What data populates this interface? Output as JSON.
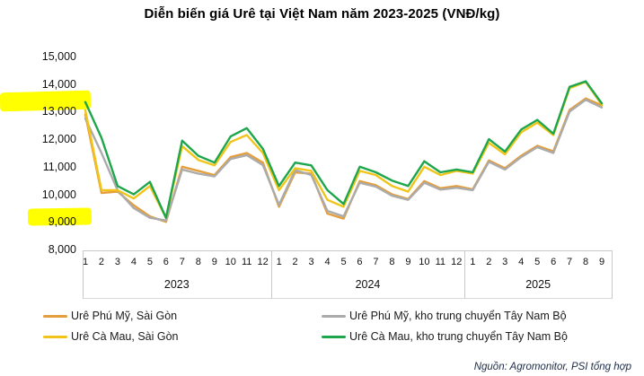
{
  "title": "Diễn biến giá Urê tại Việt Nam năm 2023-2025 (VNĐ/kg)",
  "source": "Nguồn: Agromonitor, PSI tổng hợp",
  "colors": {
    "orange": "#E49E3C",
    "yellow": "#F0C419",
    "gray": "#ABABAB",
    "green": "#1EA64C",
    "highlight": "#FFFF00",
    "axis_line": "#C9C9C9"
  },
  "chart_data": {
    "type": "line",
    "title": "Diễn biến giá Urê tại Việt Nam năm 2023-2025 (VNĐ/kg)",
    "xlabel": "",
    "ylabel": "VNĐ/kg",
    "ylim": [
      8000,
      15000
    ],
    "grid": false,
    "legend_position": "bottom",
    "y_tick_values": [
      15000,
      14000,
      13000,
      12000,
      11000,
      10000,
      9000,
      8000
    ],
    "y_tick_labels": [
      "15,000",
      "14,000",
      "13,000",
      "12,000",
      "11,000",
      "10,000",
      "9,000",
      "8,000"
    ],
    "x_groups": [
      {
        "year": "2023",
        "months": [
          "1",
          "2",
          "3",
          "4",
          "5",
          "6",
          "7",
          "8",
          "9",
          "10",
          "11",
          "12"
        ]
      },
      {
        "year": "2024",
        "months": [
          "1",
          "2",
          "3",
          "4",
          "5",
          "6",
          "7",
          "8",
          "9",
          "10",
          "11",
          "12"
        ]
      },
      {
        "year": "2025",
        "months": [
          "1",
          "2",
          "3",
          "4",
          "5",
          "6",
          "7",
          "8",
          "9"
        ]
      }
    ],
    "annotations": [
      {
        "type": "marker-highlight",
        "target": "y-axis label 13,000",
        "color": "#FFFF00"
      },
      {
        "type": "marker-highlight",
        "target": "y-axis label 9,000",
        "color": "#FFFF00"
      }
    ],
    "series": [
      {
        "name": "Urê Phú Mỹ, Sài Gòn",
        "color": "#E49E3C",
        "values": [
          12900,
          10050,
          10100,
          9600,
          9200,
          9000,
          11000,
          10850,
          10700,
          11350,
          11500,
          11150,
          9550,
          10800,
          10750,
          9300,
          9120,
          10480,
          10330,
          10000,
          9830,
          10480,
          10220,
          10300,
          10180,
          11230,
          10950,
          11400,
          11760,
          11560,
          13060,
          13480,
          13230
        ]
      },
      {
        "name": "Urê Cà Mau, Sài Gòn",
        "color": "#F0C419",
        "values": [
          13050,
          10150,
          10150,
          9850,
          10300,
          9150,
          11750,
          11250,
          11050,
          11900,
          12150,
          11500,
          10150,
          10950,
          10850,
          9800,
          9550,
          10850,
          10700,
          10300,
          10100,
          11000,
          10700,
          10850,
          10750,
          11870,
          11450,
          12250,
          12600,
          12150,
          13850,
          14080,
          13250
        ]
      },
      {
        "name": "Urê Phú Mỹ, kho trung chuyển Tây Nam Bộ",
        "color": "#ABABAB",
        "values": [
          12750,
          11500,
          10150,
          9500,
          9150,
          9050,
          10900,
          10750,
          10650,
          11280,
          11420,
          11060,
          9620,
          10880,
          10700,
          9400,
          9200,
          10420,
          10280,
          9950,
          9800,
          10420,
          10170,
          10240,
          10150,
          11180,
          10900,
          11350,
          11710,
          11500,
          13000,
          13430,
          13150
        ]
      },
      {
        "name": "Urê Cà Mau, kho trung chuyển Tây Nam Bộ",
        "color": "#1EA64C",
        "values": [
          13350,
          12050,
          10300,
          10000,
          10450,
          9150,
          11950,
          11400,
          11150,
          12100,
          12400,
          11650,
          10300,
          11150,
          11050,
          10150,
          9650,
          11000,
          10800,
          10500,
          10300,
          11200,
          10800,
          10900,
          10800,
          12000,
          11550,
          12350,
          12700,
          12200,
          13900,
          14100,
          13300
        ]
      }
    ]
  }
}
